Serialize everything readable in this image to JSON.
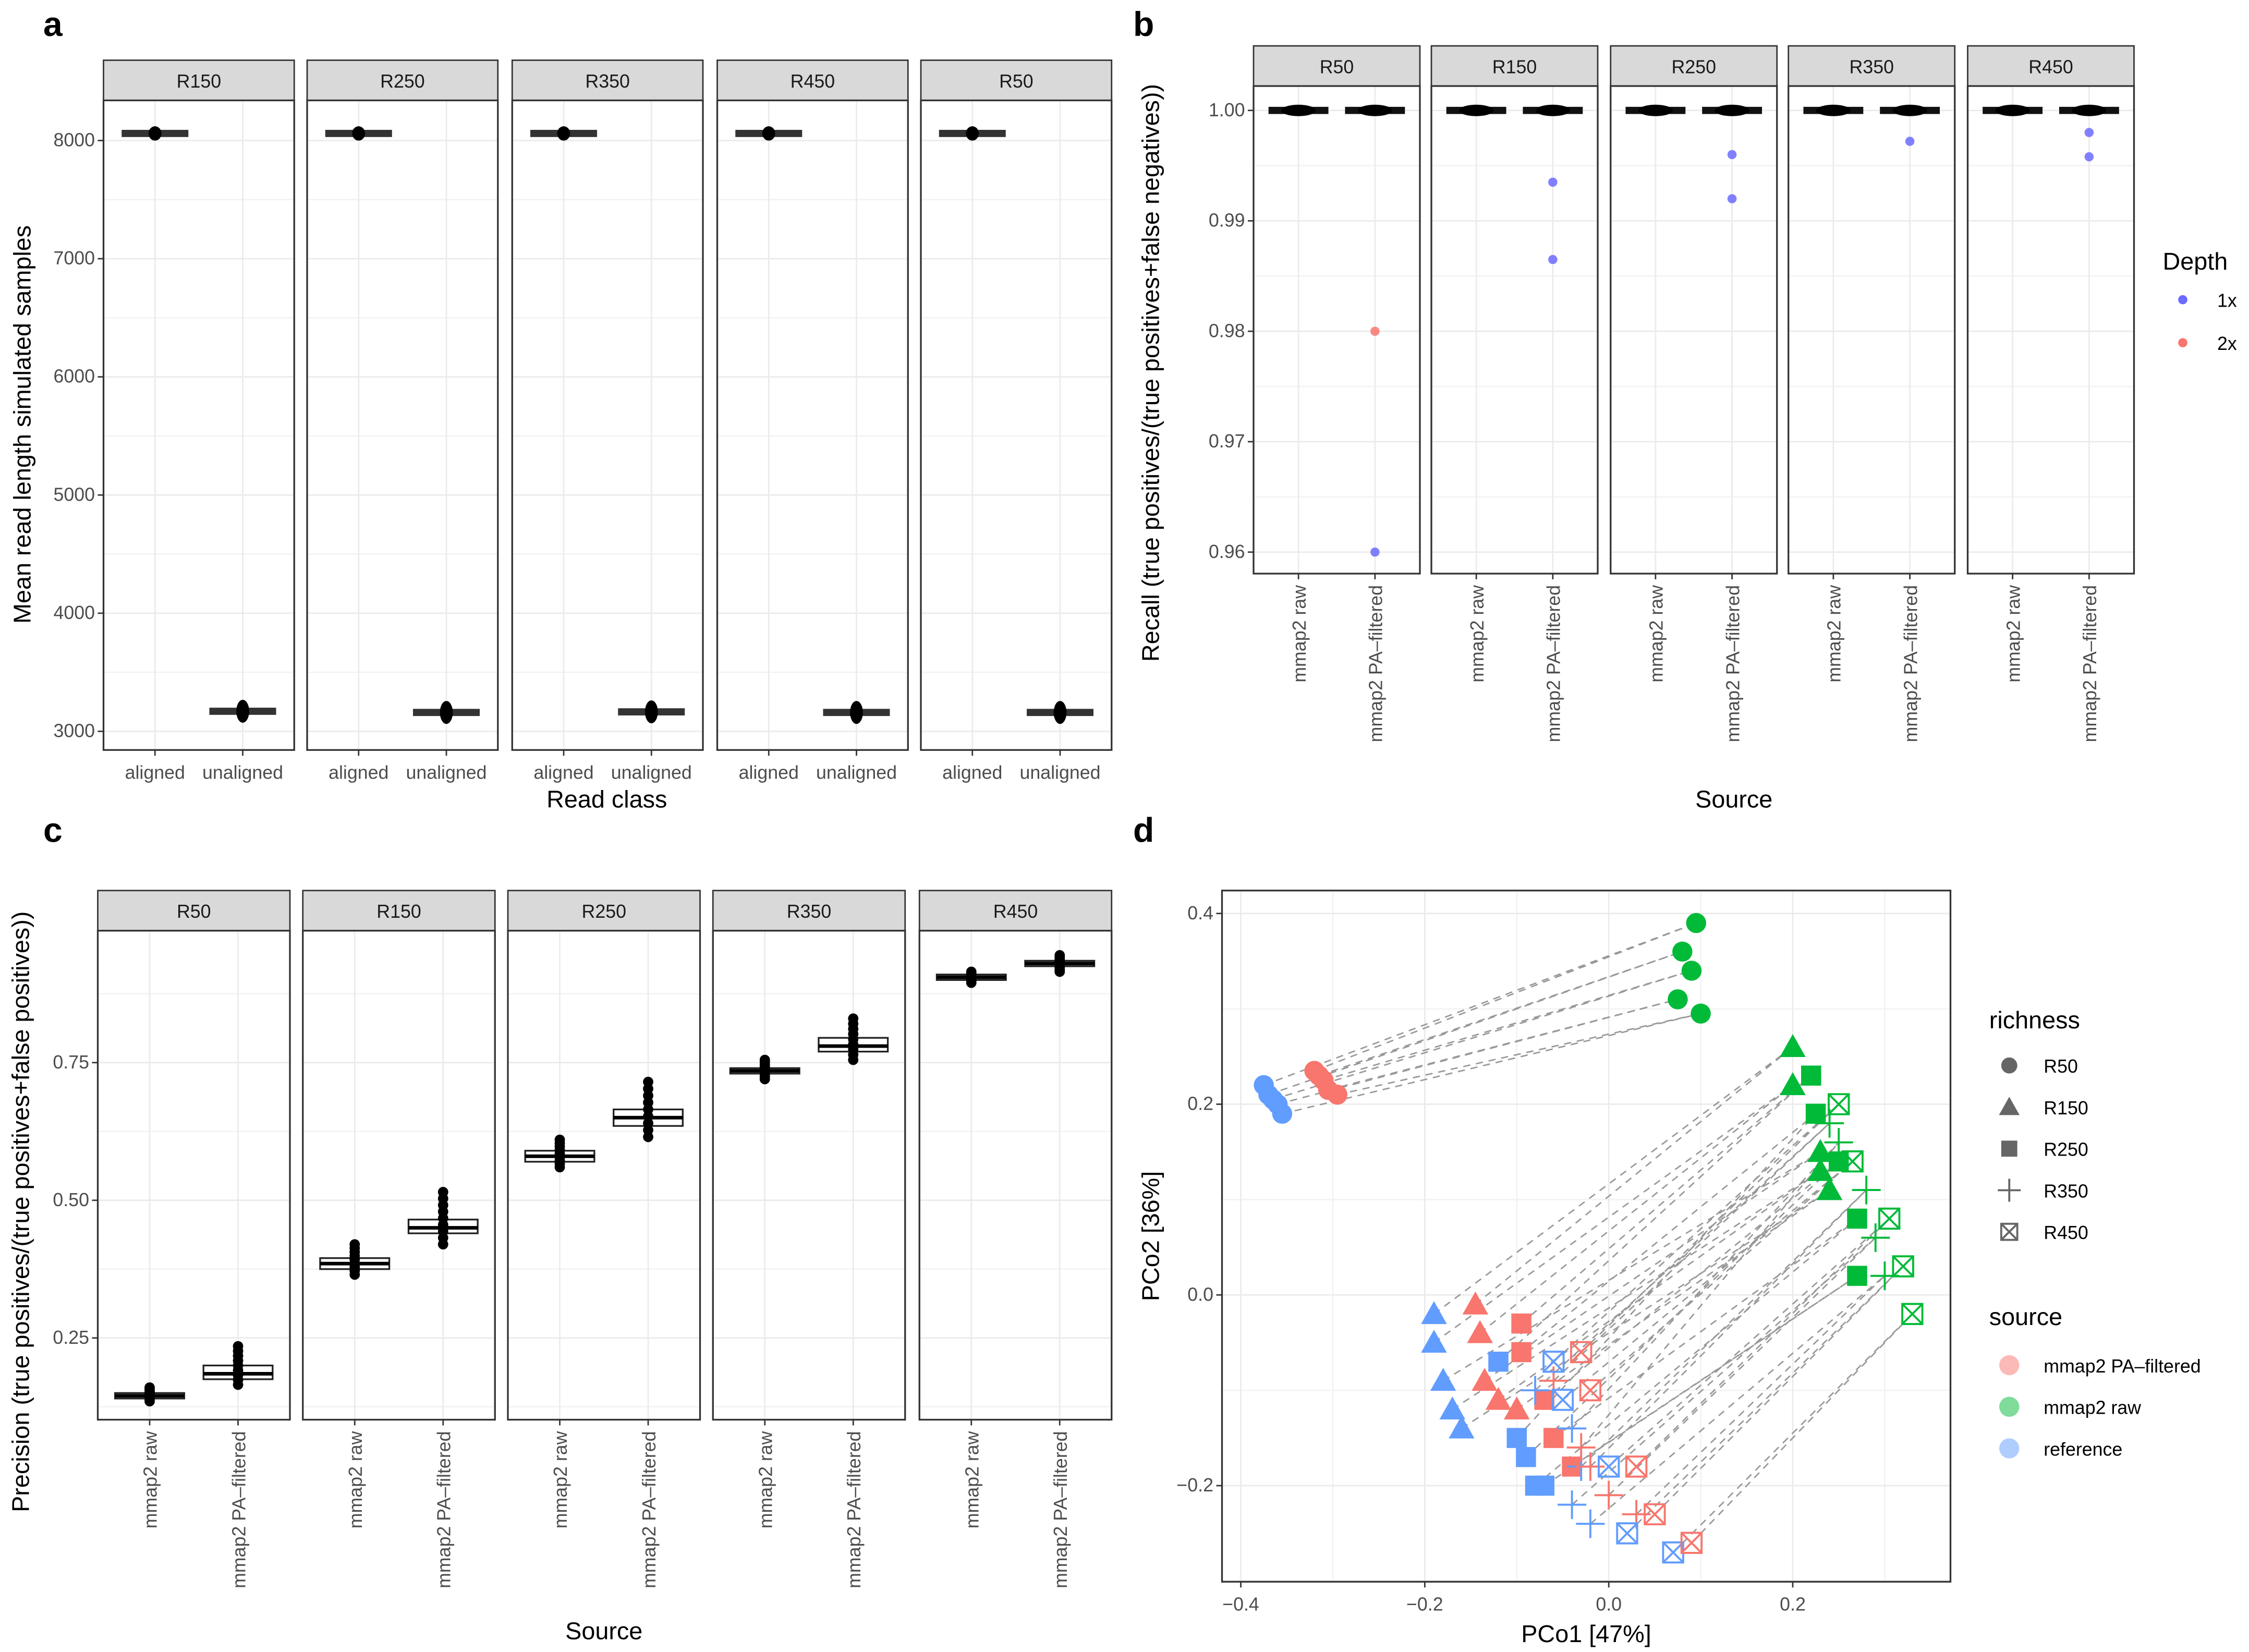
{
  "panel_labels": {
    "a": "a",
    "b": "b",
    "c": "c",
    "d": "d"
  },
  "colors": {
    "pa_filtered": "#F8766D",
    "raw": "#00BA38",
    "reference": "#619CFF",
    "depth_1x": "#6B6BFF",
    "depth_2x": "#F8766D",
    "strip": "#d9d9d9"
  },
  "chart_data": [
    {
      "panel": "a",
      "type": "boxplot",
      "xlabel": "Read class",
      "ylabel": "Mean read length simulated samples",
      "ylim": [
        2850,
        8300
      ],
      "yticks": [
        "3000",
        "4000",
        "5000",
        "6000",
        "7000",
        "8000"
      ],
      "ytick_values": [
        3000,
        4000,
        5000,
        6000,
        7000,
        8000
      ],
      "categories": [
        "aligned",
        "unaligned"
      ],
      "facets": [
        {
          "name": "R150",
          "values": [
            8060,
            3170
          ]
        },
        {
          "name": "R250",
          "values": [
            8060,
            3160
          ]
        },
        {
          "name": "R350",
          "values": [
            8060,
            3165
          ]
        },
        {
          "name": "R450",
          "values": [
            8060,
            3160
          ]
        },
        {
          "name": "R50",
          "values": [
            8060,
            3160
          ]
        }
      ]
    },
    {
      "panel": "b",
      "type": "boxplot",
      "xlabel": "Source",
      "ylabel": "Recall (true positives/(true positives+false negatives))",
      "ylim": [
        0.958,
        1.003
      ],
      "yticks": [
        "0.96",
        "0.97",
        "0.98",
        "0.99",
        "1.00"
      ],
      "ytick_values": [
        0.96,
        0.97,
        0.98,
        0.99,
        1.0
      ],
      "categories": [
        "mmap2 raw",
        "mmap2 PA–filtered"
      ],
      "legend": {
        "title": "Depth",
        "items": [
          "1x",
          "2x"
        ],
        "position": "right"
      },
      "facets": [
        {
          "name": "R50",
          "median": [
            1.0,
            1.0
          ],
          "outliers": [
            {
              "cat": 1,
              "value": 0.98,
              "depth": "2x"
            },
            {
              "cat": 1,
              "value": 0.96,
              "depth": "1x"
            }
          ]
        },
        {
          "name": "R150",
          "median": [
            1.0,
            1.0
          ],
          "outliers": [
            {
              "cat": 1,
              "value": 0.9935,
              "depth": "1x"
            },
            {
              "cat": 1,
              "value": 0.9865,
              "depth": "1x"
            }
          ]
        },
        {
          "name": "R250",
          "median": [
            1.0,
            1.0
          ],
          "outliers": [
            {
              "cat": 1,
              "value": 0.996,
              "depth": "1x"
            },
            {
              "cat": 1,
              "value": 0.992,
              "depth": "1x"
            }
          ]
        },
        {
          "name": "R350",
          "median": [
            1.0,
            1.0
          ],
          "outliers": [
            {
              "cat": 1,
              "value": 0.9972,
              "depth": "1x"
            }
          ]
        },
        {
          "name": "R450",
          "median": [
            1.0,
            1.0
          ],
          "outliers": [
            {
              "cat": 1,
              "value": 0.998,
              "depth": "1x"
            },
            {
              "cat": 1,
              "value": 0.9958,
              "depth": "1x"
            }
          ]
        }
      ]
    },
    {
      "panel": "c",
      "type": "boxplot",
      "xlabel": "Source",
      "ylabel": "Precision (true positives/(true positives+false positives))",
      "ylim": [
        0.1,
        0.97
      ],
      "yticks": [
        "0.25",
        "0.50",
        "0.75"
      ],
      "ytick_values": [
        0.25,
        0.5,
        0.75
      ],
      "categories": [
        "mmap2 raw",
        "mmap2 PA–filtered"
      ],
      "facets": [
        {
          "name": "R50",
          "boxes": [
            {
              "min": 0.135,
              "q1": 0.14,
              "median": 0.145,
              "q3": 0.15,
              "max": 0.16
            },
            {
              "min": 0.165,
              "q1": 0.175,
              "median": 0.185,
              "q3": 0.2,
              "max": 0.235
            }
          ]
        },
        {
          "name": "R150",
          "boxes": [
            {
              "min": 0.365,
              "q1": 0.375,
              "median": 0.385,
              "q3": 0.395,
              "max": 0.42
            },
            {
              "min": 0.42,
              "q1": 0.44,
              "median": 0.45,
              "q3": 0.465,
              "max": 0.515
            }
          ]
        },
        {
          "name": "R250",
          "boxes": [
            {
              "min": 0.56,
              "q1": 0.57,
              "median": 0.58,
              "q3": 0.59,
              "max": 0.61
            },
            {
              "min": 0.615,
              "q1": 0.635,
              "median": 0.65,
              "q3": 0.665,
              "max": 0.715
            }
          ]
        },
        {
          "name": "R350",
          "boxes": [
            {
              "min": 0.72,
              "q1": 0.73,
              "median": 0.735,
              "q3": 0.74,
              "max": 0.755
            },
            {
              "min": 0.755,
              "q1": 0.77,
              "median": 0.78,
              "q3": 0.795,
              "max": 0.83
            }
          ]
        },
        {
          "name": "R450",
          "boxes": [
            {
              "min": 0.895,
              "q1": 0.9,
              "median": 0.905,
              "q3": 0.91,
              "max": 0.915
            },
            {
              "min": 0.915,
              "q1": 0.925,
              "median": 0.93,
              "q3": 0.935,
              "max": 0.945
            }
          ]
        }
      ]
    },
    {
      "panel": "d",
      "type": "scatter",
      "xlabel": "PCo1 [47%]",
      "ylabel": "PCo2 [36%]",
      "xlim": [
        -0.42,
        0.37
      ],
      "ylim": [
        -0.31,
        0.425
      ],
      "xticks": [
        "−0.4",
        "−0.2",
        "0.0",
        "0.2"
      ],
      "xtick_values": [
        -0.4,
        -0.2,
        0.0,
        0.2
      ],
      "yticks": [
        "−0.2",
        "0.0",
        "0.2",
        "0.4"
      ],
      "ytick_values": [
        -0.2,
        0.0,
        0.2,
        0.4
      ],
      "legend_richness": {
        "title": "richness",
        "items": [
          "R50",
          "R150",
          "R250",
          "R350",
          "R450"
        ]
      },
      "legend_source": {
        "title": "source",
        "items": [
          "mmap2 PA–filtered",
          "mmap2 raw",
          "reference"
        ]
      },
      "groups": [
        {
          "source": "reference",
          "richness": "R50",
          "points": [
            [
              -0.375,
              0.22
            ],
            [
              -0.37,
              0.21
            ],
            [
              -0.365,
              0.205
            ],
            [
              -0.36,
              0.2
            ],
            [
              -0.355,
              0.19
            ]
          ]
        },
        {
          "source": "pa_filtered",
          "richness": "R50",
          "points": [
            [
              -0.32,
              0.235
            ],
            [
              -0.315,
              0.23
            ],
            [
              -0.31,
              0.225
            ],
            [
              -0.305,
              0.215
            ],
            [
              -0.295,
              0.21
            ]
          ]
        },
        {
          "source": "raw",
          "richness": "R50",
          "points": [
            [
              0.095,
              0.39
            ],
            [
              0.08,
              0.36
            ],
            [
              0.09,
              0.34
            ],
            [
              0.075,
              0.31
            ],
            [
              0.1,
              0.295
            ]
          ]
        },
        {
          "source": "reference",
          "richness": "R150",
          "points": [
            [
              -0.19,
              -0.02
            ],
            [
              -0.19,
              -0.05
            ],
            [
              -0.18,
              -0.09
            ],
            [
              -0.17,
              -0.12
            ],
            [
              -0.16,
              -0.14
            ]
          ]
        },
        {
          "source": "pa_filtered",
          "richness": "R150",
          "points": [
            [
              -0.145,
              -0.01
            ],
            [
              -0.14,
              -0.04
            ],
            [
              -0.135,
              -0.09
            ],
            [
              -0.12,
              -0.11
            ],
            [
              -0.1,
              -0.12
            ]
          ]
        },
        {
          "source": "raw",
          "richness": "R150",
          "points": [
            [
              0.2,
              0.26
            ],
            [
              0.2,
              0.22
            ],
            [
              0.23,
              0.15
            ],
            [
              0.23,
              0.13
            ],
            [
              0.24,
              0.11
            ]
          ]
        },
        {
          "source": "reference",
          "richness": "R250",
          "points": [
            [
              -0.12,
              -0.07
            ],
            [
              -0.1,
              -0.15
            ],
            [
              -0.09,
              -0.17
            ],
            [
              -0.08,
              -0.2
            ],
            [
              -0.07,
              -0.2
            ]
          ]
        },
        {
          "source": "pa_filtered",
          "richness": "R250",
          "points": [
            [
              -0.095,
              -0.03
            ],
            [
              -0.095,
              -0.06
            ],
            [
              -0.07,
              -0.11
            ],
            [
              -0.06,
              -0.15
            ],
            [
              -0.04,
              -0.18
            ]
          ]
        },
        {
          "source": "raw",
          "richness": "R250",
          "points": [
            [
              0.22,
              0.23
            ],
            [
              0.225,
              0.19
            ],
            [
              0.25,
              0.14
            ],
            [
              0.27,
              0.08
            ],
            [
              0.27,
              0.02
            ]
          ]
        },
        {
          "source": "reference",
          "richness": "R350",
          "points": [
            [
              -0.08,
              -0.1
            ],
            [
              -0.04,
              -0.14
            ],
            [
              -0.03,
              -0.18
            ],
            [
              -0.04,
              -0.22
            ],
            [
              -0.02,
              -0.24
            ]
          ]
        },
        {
          "source": "pa_filtered",
          "richness": "R350",
          "points": [
            [
              -0.06,
              -0.09
            ],
            [
              -0.03,
              -0.16
            ],
            [
              -0.02,
              -0.18
            ],
            [
              0.0,
              -0.21
            ],
            [
              0.03,
              -0.23
            ]
          ]
        },
        {
          "source": "raw",
          "richness": "R350",
          "points": [
            [
              0.24,
              0.18
            ],
            [
              0.25,
              0.16
            ],
            [
              0.28,
              0.11
            ],
            [
              0.29,
              0.06
            ],
            [
              0.3,
              0.02
            ]
          ]
        },
        {
          "source": "reference",
          "richness": "R450",
          "points": [
            [
              -0.06,
              -0.07
            ],
            [
              -0.05,
              -0.11
            ],
            [
              0.0,
              -0.18
            ],
            [
              0.02,
              -0.25
            ],
            [
              0.07,
              -0.27
            ]
          ]
        },
        {
          "source": "pa_filtered",
          "richness": "R450",
          "points": [
            [
              -0.03,
              -0.06
            ],
            [
              -0.02,
              -0.1
            ],
            [
              0.03,
              -0.18
            ],
            [
              0.05,
              -0.23
            ],
            [
              0.09,
              -0.26
            ]
          ]
        },
        {
          "source": "raw",
          "richness": "R450",
          "points": [
            [
              0.25,
              0.2
            ],
            [
              0.265,
              0.14
            ],
            [
              0.305,
              0.08
            ],
            [
              0.32,
              0.03
            ],
            [
              0.33,
              -0.02
            ]
          ]
        }
      ]
    }
  ]
}
